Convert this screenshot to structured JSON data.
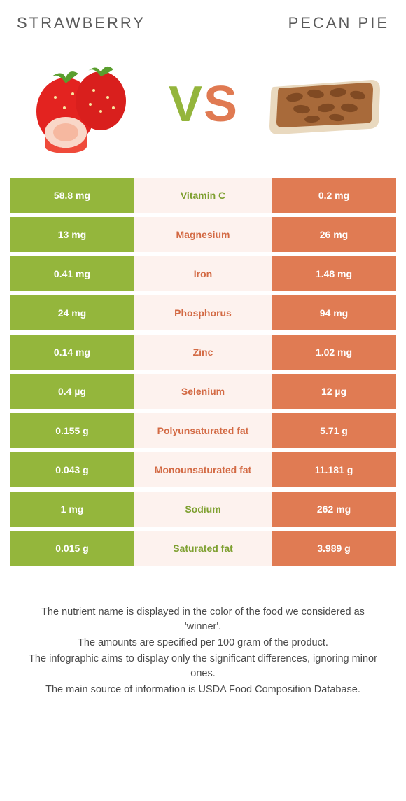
{
  "header": {
    "left_title": "STRAWBERRY",
    "right_title": "PECAN PIE",
    "vs_v": "V",
    "vs_s": "S"
  },
  "colors": {
    "green": "#94b63c",
    "orange": "#e07b53",
    "mid_bg": "#fdf2ee",
    "text_green": "#7ea030",
    "text_orange": "#d36a44"
  },
  "rows": [
    {
      "left": "58.8 mg",
      "label": "Vitamin C",
      "right": "0.2 mg",
      "winner": "green"
    },
    {
      "left": "13 mg",
      "label": "Magnesium",
      "right": "26 mg",
      "winner": "orange"
    },
    {
      "left": "0.41 mg",
      "label": "Iron",
      "right": "1.48 mg",
      "winner": "orange"
    },
    {
      "left": "24 mg",
      "label": "Phosphorus",
      "right": "94 mg",
      "winner": "orange"
    },
    {
      "left": "0.14 mg",
      "label": "Zinc",
      "right": "1.02 mg",
      "winner": "orange"
    },
    {
      "left": "0.4 µg",
      "label": "Selenium",
      "right": "12 µg",
      "winner": "orange"
    },
    {
      "left": "0.155 g",
      "label": "Polyunsaturated fat",
      "right": "5.71 g",
      "winner": "orange"
    },
    {
      "left": "0.043 g",
      "label": "Monounsaturated fat",
      "right": "11.181 g",
      "winner": "orange"
    },
    {
      "left": "1 mg",
      "label": "Sodium",
      "right": "262 mg",
      "winner": "green"
    },
    {
      "left": "0.015 g",
      "label": "Saturated fat",
      "right": "3.989 g",
      "winner": "green"
    }
  ],
  "footer": {
    "l1": "The nutrient name is displayed in the color of the food we considered as 'winner'.",
    "l2": "The amounts are specified per 100 gram of the product.",
    "l3": "The infographic aims to display only the significant differences, ignoring minor ones.",
    "l4": "The main source of information is USDA Food Composition Database."
  }
}
